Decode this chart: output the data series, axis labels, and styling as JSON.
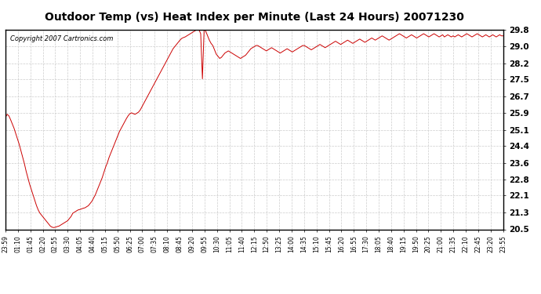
{
  "title": "Outdoor Temp (vs) Heat Index per Minute (Last 24 Hours) 20071230",
  "copyright": "Copyright 2007 Cartronics.com",
  "line_color": "#cc0000",
  "bg_color": "#ffffff",
  "plot_bg_color": "#ffffff",
  "grid_color": "#cccccc",
  "ylim": [
    20.5,
    29.8
  ],
  "yticks": [
    20.5,
    21.3,
    22.1,
    22.8,
    23.6,
    24.4,
    25.1,
    25.9,
    26.7,
    27.5,
    28.2,
    29.0,
    29.8
  ],
  "xtick_labels": [
    "23:59",
    "01:10",
    "01:45",
    "02:20",
    "02:55",
    "03:30",
    "04:05",
    "04:40",
    "05:15",
    "05:50",
    "06:25",
    "07:00",
    "07:35",
    "08:10",
    "08:45",
    "09:20",
    "09:55",
    "10:30",
    "11:05",
    "11:40",
    "12:15",
    "12:50",
    "13:25",
    "14:00",
    "14:35",
    "15:10",
    "15:45",
    "16:20",
    "16:55",
    "17:30",
    "18:05",
    "18:40",
    "19:15",
    "19:50",
    "20:25",
    "21:00",
    "21:35",
    "22:10",
    "22:45",
    "23:20",
    "23:55"
  ],
  "data_y": [
    25.7,
    25.85,
    25.78,
    25.6,
    25.4,
    25.2,
    24.95,
    24.7,
    24.45,
    24.15,
    23.85,
    23.55,
    23.2,
    22.9,
    22.6,
    22.35,
    22.1,
    21.85,
    21.6,
    21.4,
    21.25,
    21.15,
    21.05,
    20.95,
    20.85,
    20.75,
    20.65,
    20.6,
    20.58,
    20.6,
    20.63,
    20.65,
    20.7,
    20.75,
    20.8,
    20.85,
    20.9,
    21.0,
    21.1,
    21.25,
    21.3,
    21.35,
    21.4,
    21.42,
    21.45,
    21.48,
    21.5,
    21.55,
    21.6,
    21.7,
    21.8,
    21.95,
    22.1,
    22.3,
    22.5,
    22.7,
    22.9,
    23.15,
    23.4,
    23.6,
    23.85,
    24.05,
    24.25,
    24.45,
    24.65,
    24.85,
    25.05,
    25.2,
    25.35,
    25.5,
    25.65,
    25.78,
    25.88,
    25.92,
    25.88,
    25.85,
    25.9,
    25.95,
    26.05,
    26.2,
    26.35,
    26.5,
    26.65,
    26.8,
    26.95,
    27.1,
    27.25,
    27.4,
    27.55,
    27.7,
    27.85,
    28.0,
    28.15,
    28.3,
    28.45,
    28.6,
    28.75,
    28.9,
    29.0,
    29.1,
    29.2,
    29.3,
    29.38,
    29.42,
    29.45,
    29.5,
    29.55,
    29.6,
    29.65,
    29.7,
    29.75,
    29.8,
    29.78,
    29.6,
    27.5,
    29.85,
    29.7,
    29.5,
    29.3,
    29.15,
    29.05,
    28.85,
    28.65,
    28.55,
    28.45,
    28.5,
    28.6,
    28.7,
    28.75,
    28.8,
    28.75,
    28.7,
    28.65,
    28.6,
    28.55,
    28.5,
    28.45,
    28.5,
    28.55,
    28.6,
    28.7,
    28.8,
    28.9,
    28.95,
    29.0,
    29.05,
    29.05,
    29.0,
    28.95,
    28.9,
    28.85,
    28.8,
    28.85,
    28.9,
    28.95,
    28.9,
    28.85,
    28.8,
    28.75,
    28.7,
    28.75,
    28.8,
    28.85,
    28.9,
    28.85,
    28.8,
    28.75,
    28.8,
    28.85,
    28.9,
    28.95,
    29.0,
    29.05,
    29.05,
    29.0,
    28.95,
    28.9,
    28.85,
    28.9,
    28.95,
    29.0,
    29.05,
    29.1,
    29.05,
    29.0,
    28.95,
    29.0,
    29.05,
    29.1,
    29.15,
    29.2,
    29.25,
    29.2,
    29.15,
    29.1,
    29.15,
    29.2,
    29.25,
    29.3,
    29.25,
    29.2,
    29.15,
    29.2,
    29.25,
    29.3,
    29.35,
    29.3,
    29.25,
    29.2,
    29.25,
    29.3,
    29.35,
    29.4,
    29.35,
    29.3,
    29.35,
    29.4,
    29.45,
    29.5,
    29.45,
    29.4,
    29.35,
    29.3,
    29.35,
    29.4,
    29.45,
    29.5,
    29.55,
    29.6,
    29.55,
    29.5,
    29.45,
    29.4,
    29.45,
    29.5,
    29.55,
    29.5,
    29.45,
    29.4,
    29.45,
    29.5,
    29.55,
    29.6,
    29.55,
    29.5,
    29.45,
    29.5,
    29.55,
    29.6,
    29.55,
    29.5,
    29.45,
    29.5,
    29.55,
    29.45,
    29.5,
    29.55,
    29.5,
    29.45,
    29.5,
    29.45,
    29.5,
    29.55,
    29.5,
    29.45,
    29.5,
    29.55,
    29.6,
    29.55,
    29.5,
    29.45,
    29.5,
    29.55,
    29.6,
    29.55,
    29.5,
    29.45,
    29.5,
    29.55,
    29.5,
    29.45,
    29.5,
    29.55,
    29.5,
    29.45,
    29.5,
    29.55,
    29.5,
    29.5
  ]
}
